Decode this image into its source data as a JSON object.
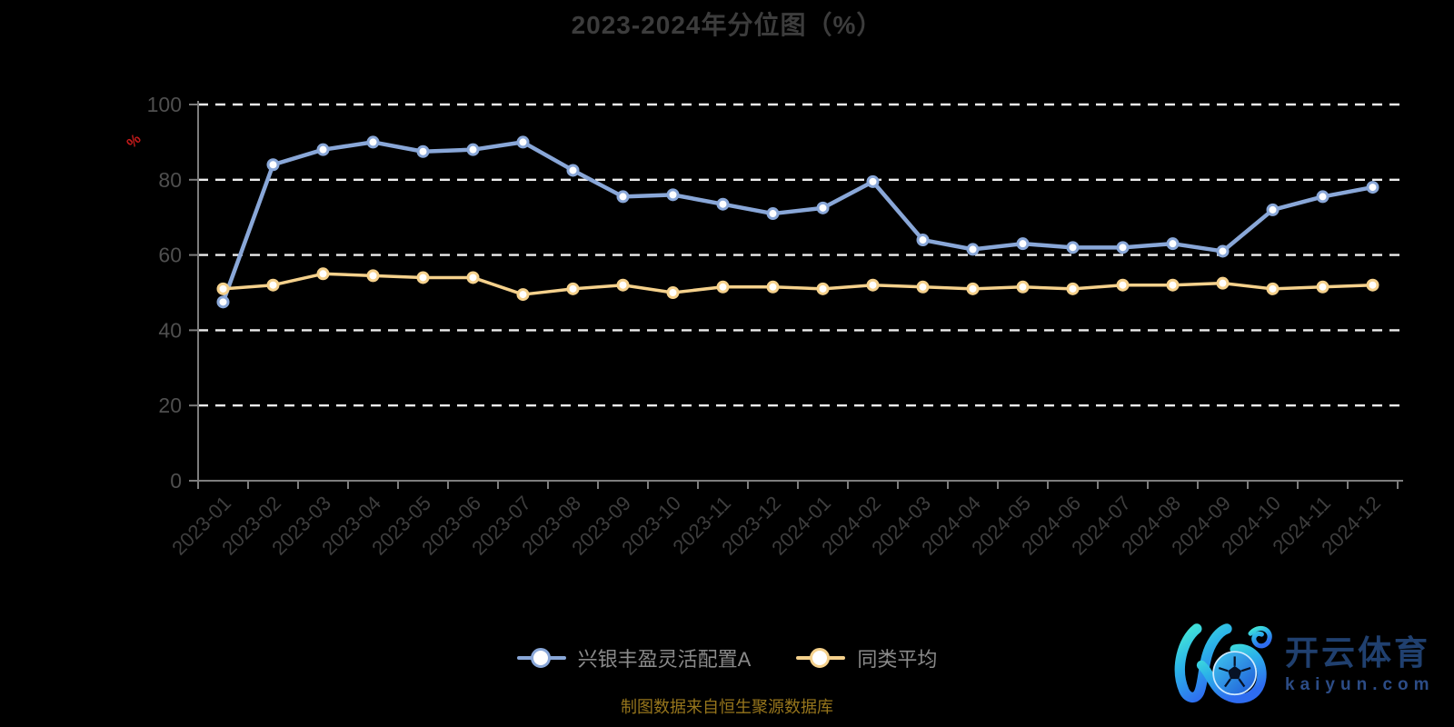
{
  "chart_data": {
    "type": "line",
    "title": "2023-2024年分位图（%）",
    "y_unit_label": "%",
    "x": [
      "2023-01",
      "2023-02",
      "2023-03",
      "2023-04",
      "2023-05",
      "2023-06",
      "2023-07",
      "2023-08",
      "2023-09",
      "2023-10",
      "2023-11",
      "2023-12",
      "2024-01",
      "2024-02",
      "2024-03",
      "2024-04",
      "2024-05",
      "2024-06",
      "2024-07",
      "2024-08",
      "2024-09",
      "2024-10",
      "2024-11",
      "2024-12"
    ],
    "series": [
      {
        "name": "兴银丰盈灵活配置A",
        "color": "#89a7d8",
        "values": [
          47.5,
          84,
          88,
          90,
          87.5,
          88,
          90,
          82.5,
          75.5,
          76,
          73.5,
          71,
          72.5,
          79.5,
          64,
          61.5,
          63,
          62,
          62,
          63,
          61,
          72,
          75.5,
          78
        ]
      },
      {
        "name": "同类平均",
        "color": "#f5d18c",
        "values": [
          51,
          52,
          55,
          54.5,
          54,
          54,
          49.5,
          51,
          52,
          50,
          51.5,
          51.5,
          51,
          52,
          51.5,
          51,
          51.5,
          51,
          52,
          52,
          52.5,
          51,
          51.5,
          52
        ]
      }
    ],
    "ylim": [
      0,
      100
    ],
    "y_ticks": [
      0,
      20,
      40,
      60,
      80,
      100
    ],
    "grid": "horizontal-dashed",
    "legend_position": "bottom-center"
  },
  "caption": {
    "text": "制图数据来自恒生聚源数据库"
  },
  "watermark": {
    "cn": "开云体育",
    "domain": "kaiyun.com"
  },
  "colors": {
    "background": "#000000",
    "title_text": "#3c3c3c",
    "axis_line": "#7d7d7d",
    "y_tick_label": "#4f4f4f",
    "x_tick_label": "#3e3e3e",
    "gridline": "#ededed",
    "marker_fill": "#ffffff",
    "legend_text": "#8a8a8a",
    "y_unit": "#c41a1a",
    "caption_text": "#96751c",
    "logo_text": "#20406f"
  }
}
